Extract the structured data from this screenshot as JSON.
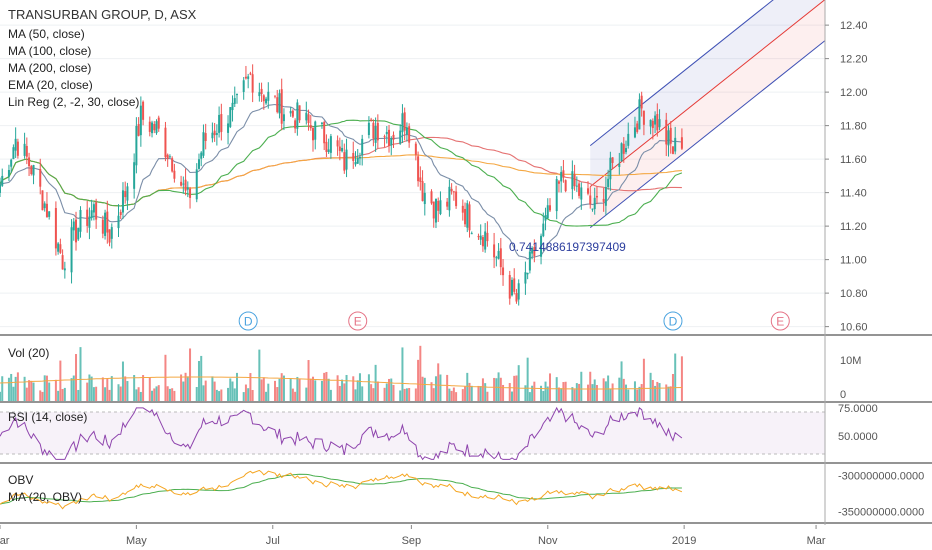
{
  "header": {
    "title": "TRANSURBAN GROUP, D, ASX",
    "studies": [
      "MA (50, close)",
      "MA (100, close)",
      "MA (200, close)",
      "EMA (20, close)",
      "Lin Reg (2, -2, 30, close)"
    ]
  },
  "annotation": "0.7414886197397409",
  "event_markers": [
    {
      "label": "D",
      "date": "2018-06-20",
      "type": "dividend"
    },
    {
      "label": "E",
      "date": "2018-08-08",
      "type": "earnings"
    },
    {
      "label": "D",
      "date": "2018-12-27",
      "type": "dividend"
    },
    {
      "label": "E",
      "date": "2019-02-13",
      "type": "earnings"
    }
  ],
  "panes": {
    "volume": {
      "label": "Vol (20)"
    },
    "rsi": {
      "label": "RSI (14, close)"
    },
    "obv": {
      "label": "OBV",
      "ma_label": "MA (20, OBV)"
    }
  },
  "colors": {
    "up": "#26a69a",
    "down": "#ef5350",
    "ma50": "#4caf50",
    "ma100": "#e57373",
    "ma200": "#f4a742",
    "ema20": "#7b8ea8",
    "linreg_mid": "#e53935",
    "linreg_band": "#3f51b5",
    "rsi": "#8e44ad",
    "obv": "#f5a623"
  },
  "chart_data": {
    "type": "candlestick",
    "y_axis": {
      "ticks": [
        "12.40",
        "12.20",
        "12.00",
        "11.80",
        "11.60",
        "11.40",
        "11.20",
        "11.00",
        "10.80",
        "10.60"
      ],
      "range": [
        10.55,
        12.55
      ]
    },
    "x_axis": {
      "ticks": [
        "Mar",
        "May",
        "Jul",
        "Sep",
        "Nov",
        "2019",
        "Mar"
      ],
      "range": [
        "2018-03-01",
        "2019-03-05"
      ]
    },
    "volume_ticks": [
      "10M",
      "0"
    ],
    "rsi_ticks": [
      "75.0000",
      "50.0000"
    ],
    "obv_ticks": [
      "-300000000.0000",
      "-350000000.0000"
    ],
    "price_keypoints": [
      [
        "2018-03-01",
        11.45
      ],
      [
        "2018-03-08",
        11.72
      ],
      [
        "2018-03-15",
        11.55
      ],
      [
        "2018-03-22",
        11.3
      ],
      [
        "2018-03-29",
        11.0
      ],
      [
        "2018-04-05",
        11.2
      ],
      [
        "2018-04-12",
        11.3
      ],
      [
        "2018-04-19",
        11.15
      ],
      [
        "2018-04-26",
        11.4
      ],
      [
        "2018-05-03",
        11.85
      ],
      [
        "2018-05-10",
        11.78
      ],
      [
        "2018-05-17",
        11.6
      ],
      [
        "2018-05-24",
        11.35
      ],
      [
        "2018-05-31",
        11.7
      ],
      [
        "2018-06-07",
        11.82
      ],
      [
        "2018-06-14",
        11.88
      ],
      [
        "2018-06-21",
        12.1
      ],
      [
        "2018-06-28",
        11.98
      ],
      [
        "2018-07-05",
        11.9
      ],
      [
        "2018-07-12",
        11.85
      ],
      [
        "2018-07-19",
        11.78
      ],
      [
        "2018-07-26",
        11.72
      ],
      [
        "2018-08-02",
        11.58
      ],
      [
        "2018-08-09",
        11.7
      ],
      [
        "2018-08-16",
        11.8
      ],
      [
        "2018-08-23",
        11.75
      ],
      [
        "2018-08-30",
        11.85
      ],
      [
        "2018-09-06",
        11.42
      ],
      [
        "2018-09-13",
        11.3
      ],
      [
        "2018-09-20",
        11.38
      ],
      [
        "2018-09-27",
        11.25
      ],
      [
        "2018-10-04",
        11.15
      ],
      [
        "2018-10-11",
        10.95
      ],
      [
        "2018-10-18",
        10.75
      ],
      [
        "2018-10-25",
        11.0
      ],
      [
        "2018-11-01",
        11.25
      ],
      [
        "2018-11-08",
        11.5
      ],
      [
        "2018-11-15",
        11.4
      ],
      [
        "2018-11-22",
        11.3
      ],
      [
        "2018-11-29",
        11.52
      ],
      [
        "2018-12-06",
        11.72
      ],
      [
        "2018-12-13",
        11.9
      ],
      [
        "2018-12-20",
        11.82
      ],
      [
        "2018-12-27",
        11.65
      ],
      [
        "2018-12-31",
        11.72
      ]
    ],
    "volume_range": [
      0,
      10000000
    ],
    "rsi_range": [
      30,
      75
    ],
    "obv_range": [
      -365000000,
      -285000000
    ]
  }
}
